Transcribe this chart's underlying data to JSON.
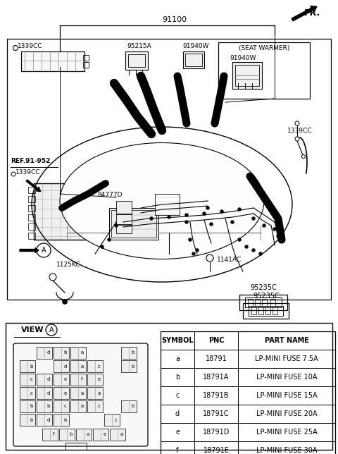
{
  "bg_color": "#ffffff",
  "fig_w": 4.8,
  "fig_h": 6.44,
  "dpi": 100,
  "table_data": {
    "headers": [
      "SYMBOL",
      "PNC",
      "PART NAME"
    ],
    "rows": [
      [
        "a",
        "18791",
        "LP-MINI FUSE 7.5A"
      ],
      [
        "b",
        "18791A",
        "LP-MINI FUSE 10A"
      ],
      [
        "c",
        "18791B",
        "LP-MINI FUSE 15A"
      ],
      [
        "d",
        "18791C",
        "LP-MINI FUSE 20A"
      ],
      [
        "e",
        "18791D",
        "LP-MINI FUSE 25A"
      ],
      [
        "f",
        "18791E",
        "LP-MINI FUSE 30A"
      ]
    ]
  },
  "fuse_grid_rows": [
    [
      "",
      "d",
      "b",
      "a",
      "",
      "",
      "b"
    ],
    [
      "b",
      "",
      "d",
      "a",
      "c",
      "",
      "b"
    ],
    [
      "c",
      "d",
      "e",
      "f",
      "e",
      "",
      ""
    ],
    [
      "c",
      "d",
      "e",
      "a",
      "a",
      "",
      ""
    ],
    [
      "b",
      "b",
      "c",
      "a",
      "c",
      "",
      "b"
    ],
    [
      "b",
      "d",
      "b",
      "",
      "",
      "c",
      ""
    ]
  ],
  "fuse_bottom_row": [
    "",
    "f",
    "b",
    "a",
    "e",
    "a",
    ""
  ]
}
